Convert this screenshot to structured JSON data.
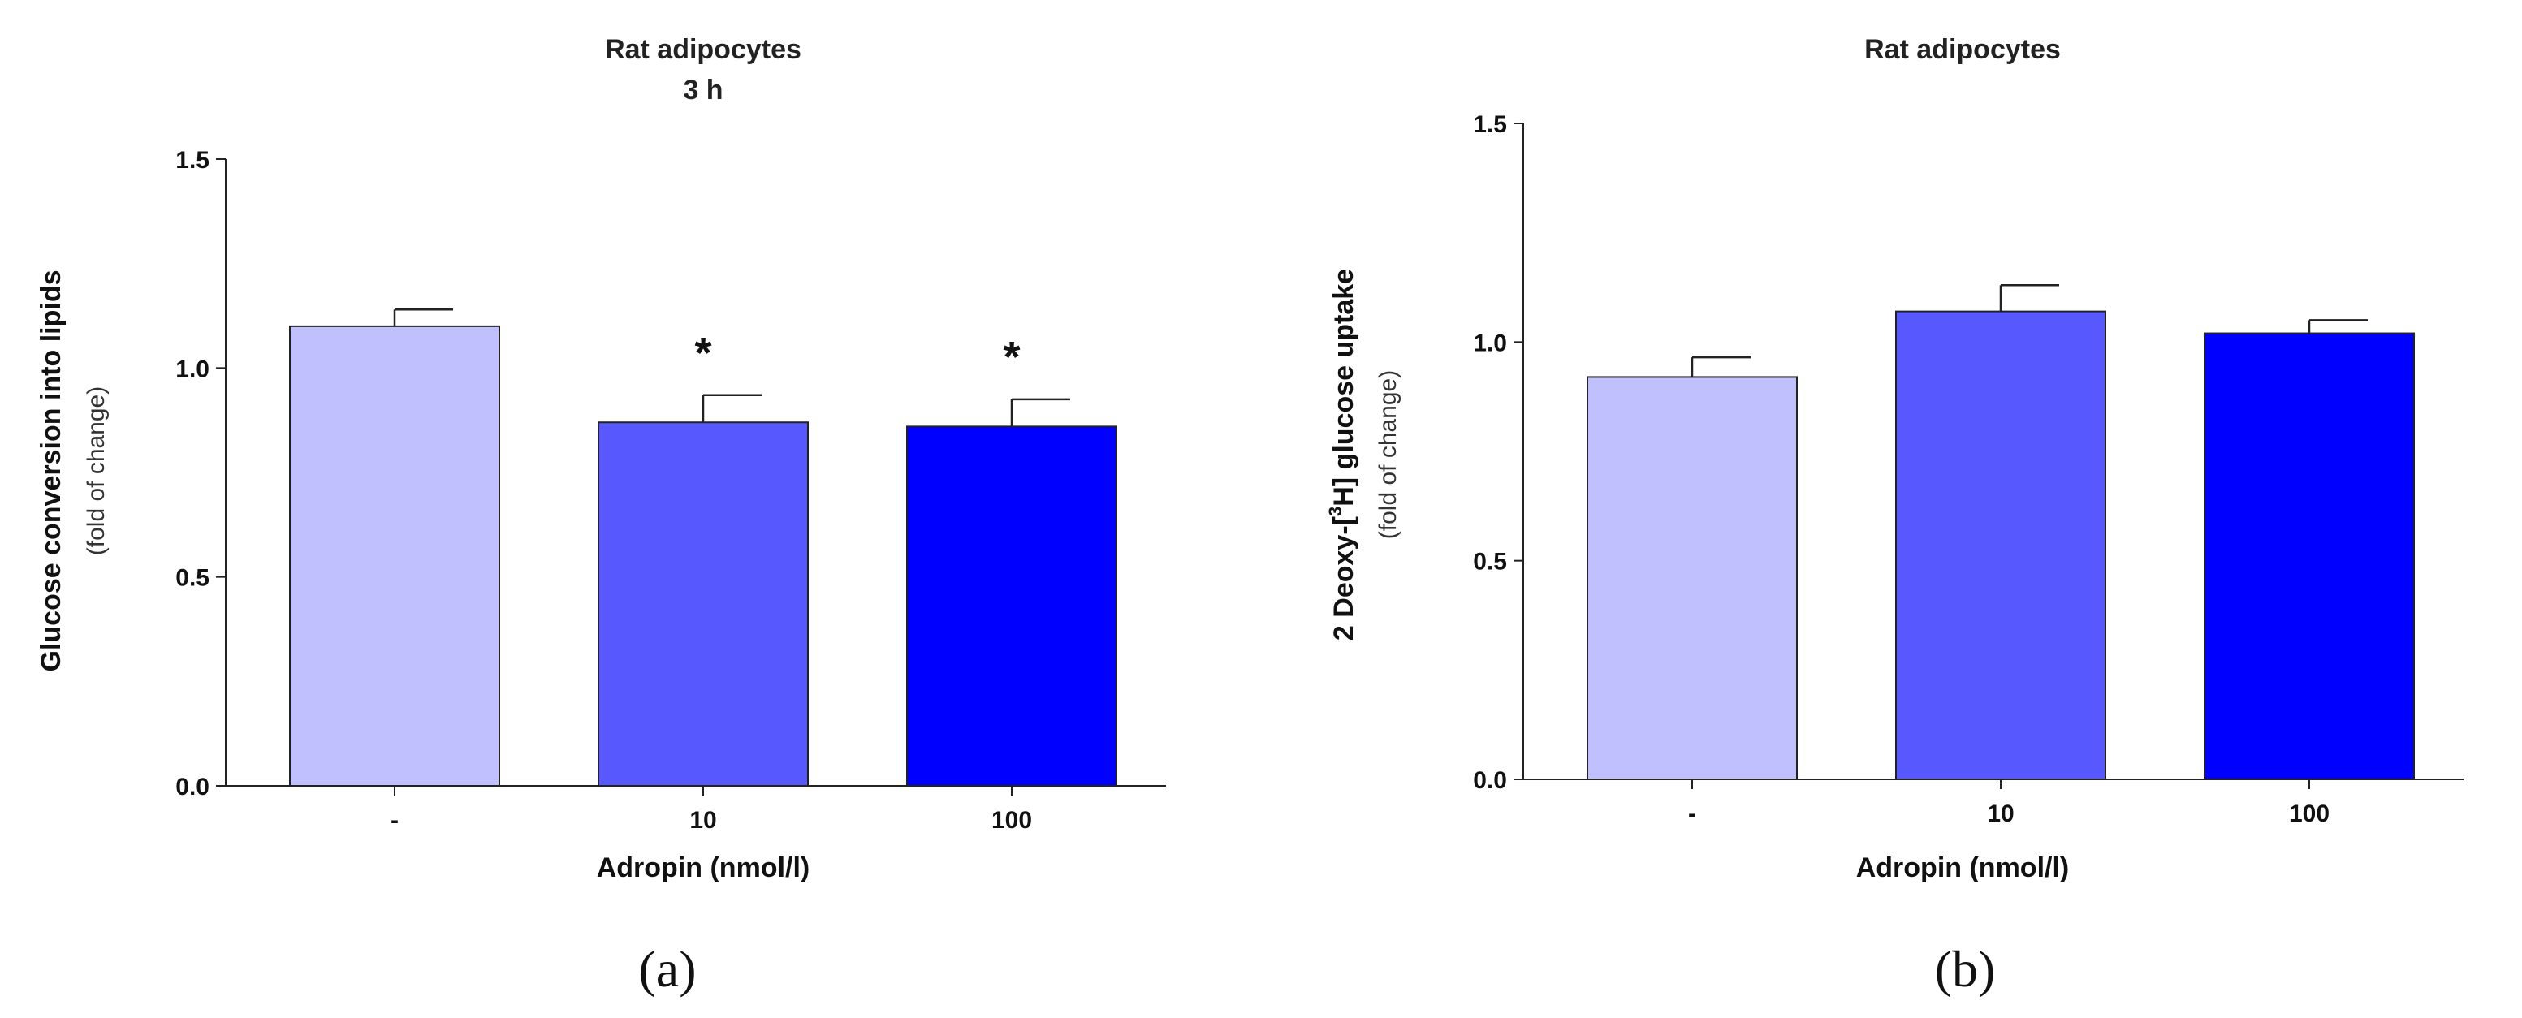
{
  "chart_data": [
    {
      "type": "bar",
      "panel_label": "(a)",
      "title_lines": [
        "Rat adipocytes",
        "3 h"
      ],
      "ylabel": "Glucose conversion into lipids",
      "ylabel_sub": "(fold of change)",
      "xlabel": "Adropin (nmol/l)",
      "categories": [
        "-",
        "10",
        "100"
      ],
      "values": [
        1.1,
        0.87,
        0.86
      ],
      "errors": [
        0.04,
        0.065,
        0.065
      ],
      "significance": [
        "",
        "*",
        "*"
      ],
      "ylim": [
        0,
        1.5
      ],
      "yticks": [
        "0.0",
        "0.5",
        "1.0",
        "1.5"
      ],
      "colors": [
        "#c0c0ff",
        "#5858ff",
        "#0000ff"
      ]
    },
    {
      "type": "bar",
      "panel_label": "(b)",
      "title_lines": [
        "Rat adipocytes"
      ],
      "ylabel_pre": "2 Deoxy-[",
      "ylabel_sup": "3",
      "ylabel_post": "H] glucose uptake",
      "ylabel_sub": "(fold of change)",
      "xlabel": "Adropin (nmol/l)",
      "categories": [
        "-",
        "10",
        "100"
      ],
      "values": [
        0.92,
        1.07,
        1.02
      ],
      "errors": [
        0.045,
        0.06,
        0.03
      ],
      "significance": [
        "",
        "",
        ""
      ],
      "ylim": [
        0,
        1.5
      ],
      "yticks": [
        "0.0",
        "0.5",
        "1.0",
        "1.5"
      ],
      "colors": [
        "#c0c0ff",
        "#5858ff",
        "#0000ff"
      ]
    }
  ]
}
